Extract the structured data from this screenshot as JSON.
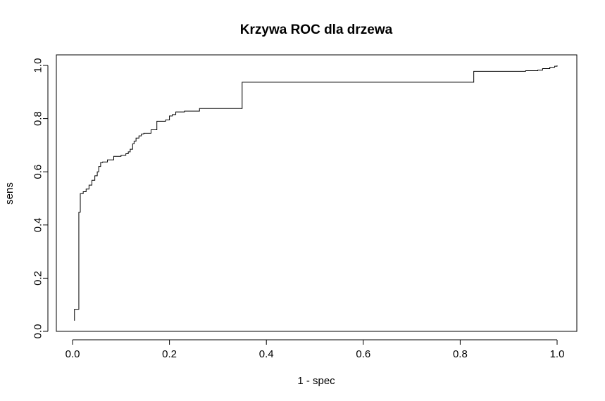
{
  "chart_data": {
    "type": "line",
    "title": "Krzywa ROC dla drzewa",
    "xlabel": "1 - spec",
    "ylabel": "sens",
    "xlim": [
      -0.04,
      1.04
    ],
    "ylim": [
      0,
      1.0
    ],
    "x_ticks": [
      0.0,
      0.2,
      0.4,
      0.6,
      0.8,
      1.0
    ],
    "x_tick_labels": [
      "0.0",
      "0.2",
      "0.4",
      "0.6",
      "0.8",
      "1.0"
    ],
    "y_ticks": [
      0.0,
      0.2,
      0.4,
      0.6,
      0.8,
      1.0
    ],
    "y_tick_labels": [
      "0.0",
      "0.2",
      "0.4",
      "0.6",
      "0.8",
      "1.0"
    ],
    "grid": false,
    "line_color": "#000000",
    "series": [
      {
        "step": "vertical-first",
        "x": [
          0.004,
          0.004,
          0.013,
          0.016,
          0.022,
          0.028,
          0.034,
          0.04,
          0.046,
          0.051,
          0.054,
          0.058,
          0.062,
          0.072,
          0.085,
          0.1,
          0.11,
          0.115,
          0.119,
          0.124,
          0.127,
          0.131,
          0.137,
          0.142,
          0.147,
          0.162,
          0.174,
          0.192,
          0.2,
          0.206,
          0.213,
          0.231,
          0.262,
          0.35,
          0.35,
          0.828,
          0.935,
          0.96,
          0.97,
          0.985,
          0.995,
          1.0
        ],
        "y": [
          0.04,
          0.083,
          0.448,
          0.518,
          0.525,
          0.535,
          0.55,
          0.568,
          0.585,
          0.6,
          0.62,
          0.635,
          0.637,
          0.645,
          0.658,
          0.662,
          0.668,
          0.675,
          0.685,
          0.705,
          0.715,
          0.727,
          0.735,
          0.742,
          0.745,
          0.758,
          0.79,
          0.795,
          0.81,
          0.815,
          0.825,
          0.828,
          0.838,
          0.84,
          0.937,
          0.978,
          0.98,
          0.982,
          0.988,
          0.993,
          0.997,
          1.0
        ]
      }
    ]
  }
}
